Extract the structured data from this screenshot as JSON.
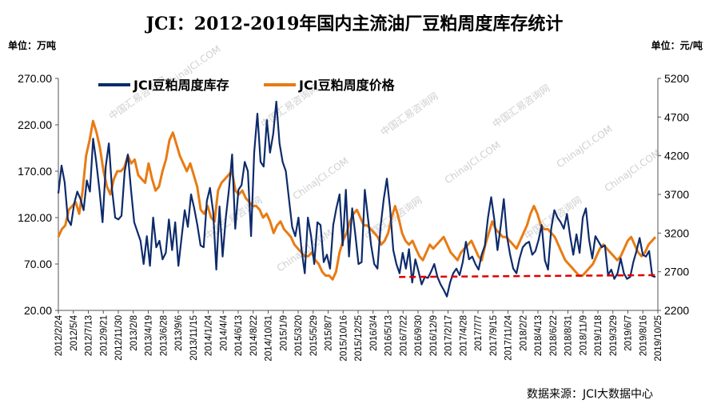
{
  "title": "JCI：2012-2019年国内主流油厂豆粕周度库存统计",
  "unit_left": "单位：万吨",
  "unit_right": "单位：元/吨",
  "source": "数据来源：JCI大数据中心",
  "watermarks": [
    "中国汇易咨询网",
    "ChinaJCI.COM"
  ],
  "colors": {
    "inventory": "#0d2b6b",
    "price": "#e87b14",
    "reference_line": "#e00000"
  },
  "chart_data": {
    "type": "line",
    "title": "JCI：2012-2019年国内主流油厂豆粕周度库存统计",
    "y_left": {
      "unit": "万吨",
      "ylim": [
        20,
        270
      ],
      "ticks": [
        "20.00",
        "70.00",
        "120.00",
        "170.00",
        "220.00",
        "270.00"
      ]
    },
    "y_right": {
      "unit": "元/吨",
      "ylim": [
        2200,
        5200
      ],
      "ticks": [
        "2200",
        "2700",
        "3200",
        "3700",
        "4200",
        "4700",
        "5200"
      ]
    },
    "x_tick_labels": [
      "2012/2/24",
      "2012/5/4",
      "2012/7/13",
      "2012/9/21",
      "2012/11/30",
      "2013/2/8",
      "2013/4/19",
      "2013/6/28",
      "2013/9/6",
      "2013/11/15",
      "2014/1/24",
      "2014/4/4",
      "2014/6/13",
      "2014/8/22",
      "2014/10/31",
      "2015/1/9",
      "2015/3/20",
      "2015/5/29",
      "2015/8/7",
      "2015/10/16",
      "2015/12/25",
      "2016/3/4",
      "2016/5/13",
      "2016/7/22",
      "2016/9/30",
      "2016/12/9",
      "2017/2/17",
      "2017/4/28",
      "2017/7/7",
      "2017/9/15",
      "2017/11/24",
      "2018/2/2",
      "2018/4/13",
      "2018/6/22",
      "2018/8/31",
      "2018/11/9",
      "2019/1/18",
      "2019/3/29",
      "2019/6/7",
      "2019/8/16",
      "2019/10/25"
    ],
    "legend": {
      "placement": "top-left",
      "entries": [
        "JCI豆粕周度库存",
        "JCI豆粕周度价格"
      ]
    },
    "series": [
      {
        "name": "JCI豆粕周度库存",
        "axis": "left",
        "values": [
          146,
          176,
          158,
          118,
          112,
          135,
          148,
          140,
          128,
          160,
          148,
          205,
          180,
          150,
          115,
          175,
          200,
          150,
          120,
          118,
          122,
          170,
          188,
          150,
          115,
          105,
          95,
          70,
          100,
          68,
          120,
          88,
          95,
          75,
          82,
          118,
          85,
          115,
          68,
          98,
          128,
          110,
          145,
          130,
          112,
          90,
          88,
          138,
          152,
          126,
          64,
          132,
          78,
          120,
          150,
          188,
          108,
          150,
          155,
          180,
          170,
          100,
          190,
          232,
          180,
          175,
          225,
          190,
          210,
          245,
          200,
          180,
          170,
          140,
          110,
          100,
          120,
          85,
          60,
          120,
          100,
          70,
          115,
          112,
          72,
          80,
          65,
          112,
          130,
          145,
          90,
          150,
          78,
          130,
          102,
          70,
          72,
          150,
          120,
          90,
          70,
          65,
          110,
          140,
          162,
          130,
          85,
          70,
          60,
          82,
          65,
          86,
          50,
          75,
          62,
          48,
          56,
          55,
          62,
          70,
          56,
          48,
          42,
          35,
          50,
          60,
          65,
          58,
          72,
          94,
          75,
          78,
          70,
          64,
          80,
          90,
          120,
          142,
          118,
          85,
          110,
          140,
          100,
          80,
          65,
          60,
          76,
          88,
          92,
          94,
          80,
          84,
          96,
          112,
          74,
          64,
          108,
          128,
          120,
          115,
          108,
          124,
          100,
          80,
          102,
          82,
          120,
          130,
          96,
          76,
          100,
          94,
          88,
          90,
          58,
          64,
          54,
          60,
          76,
          60,
          54,
          56,
          72,
          84,
          98,
          80,
          78,
          84,
          57,
          56
        ]
      },
      {
        "name": "JCI豆粕周度价格",
        "axis": "right",
        "values": [
          3150,
          3250,
          3300,
          3500,
          3550,
          3600,
          3450,
          3750,
          4200,
          4400,
          4650,
          4500,
          4300,
          4000,
          3800,
          3700,
          3900,
          4000,
          4000,
          4050,
          4200,
          4100,
          4150,
          3950,
          3900,
          3850,
          4100,
          3900,
          3750,
          3800,
          4000,
          4150,
          4400,
          4500,
          4350,
          4200,
          4100,
          4000,
          4100,
          3950,
          3800,
          3500,
          3450,
          3550,
          3400,
          3350,
          3750,
          3850,
          3900,
          3950,
          4000,
          3750,
          3700,
          3750,
          3650,
          3600,
          3550,
          3550,
          3500,
          3400,
          3450,
          3350,
          3200,
          3300,
          3350,
          3250,
          3200,
          3150,
          3050,
          3000,
          2950,
          2900,
          2900,
          2950,
          2850,
          2800,
          2700,
          2650,
          2650,
          2600,
          2700,
          2950,
          3100,
          3200,
          3350,
          3450,
          3500,
          3400,
          3300,
          3300,
          3250,
          3200,
          3150,
          3050,
          3100,
          3200,
          3400,
          3550,
          3400,
          3200,
          3100,
          3050,
          3100,
          3000,
          2900,
          2850,
          2950,
          3050,
          3000,
          3050,
          3100,
          3150,
          3050,
          2950,
          2900,
          2850,
          2950,
          3000,
          3050,
          3100,
          3000,
          2900,
          2850,
          3050,
          3200,
          3350,
          3250,
          3200,
          3150,
          3150,
          3100,
          3050,
          3000,
          3100,
          3200,
          3300,
          3450,
          3550,
          3450,
          3300,
          3250,
          3250,
          3200,
          3150,
          3050,
          2950,
          2850,
          2800,
          2750,
          2700,
          2650,
          2650,
          2700,
          2750,
          2800,
          2900,
          3000,
          3050,
          3000,
          2950,
          2900,
          2850,
          2900,
          3000,
          3100,
          3150,
          3050,
          2950,
          2900,
          2950,
          3050,
          3100,
          3150
        ]
      },
      {
        "name": "",
        "axis": "left",
        "style": "dashed",
        "x_start": "2016/7/22",
        "x_end": "2019/10/25",
        "values": [
          56,
          58
        ]
      }
    ]
  }
}
